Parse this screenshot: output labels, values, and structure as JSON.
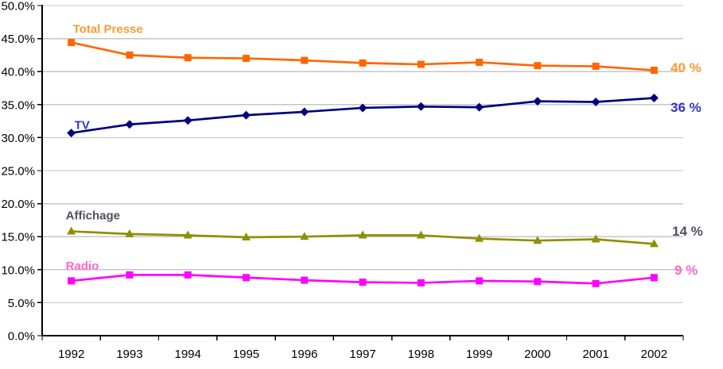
{
  "chart_data": {
    "type": "line",
    "title": "",
    "x_labels": [
      "1992",
      "1993",
      "1994",
      "1995",
      "1996",
      "1997",
      "1998",
      "1999",
      "2000",
      "2001",
      "2002"
    ],
    "y_axis": {
      "min": 0,
      "max": 50,
      "step": 5,
      "tick_labels": [
        "0.0%",
        "5.0%",
        "10.0%",
        "15.0%",
        "20.0%",
        "25.0%",
        "30.0%",
        "35.0%",
        "40.0%",
        "45.0%",
        "50.0%"
      ]
    },
    "grid": true,
    "legend_position": "inline-labels-near-first-point-and-end-values",
    "series": [
      {
        "name": "Total Presse",
        "marker": "square",
        "line_color": "#FF6600",
        "label_color": "#FF9933",
        "end_label": "40 %",
        "values": [
          44.4,
          42.5,
          42.1,
          42.0,
          41.7,
          41.3,
          41.1,
          41.4,
          40.9,
          40.8,
          40.2
        ]
      },
      {
        "name": "TV",
        "marker": "diamond",
        "line_color": "#000080",
        "label_color": "#3333CC",
        "end_label": "36 %",
        "values": [
          30.7,
          32.0,
          32.6,
          33.4,
          33.9,
          34.5,
          34.7,
          34.6,
          35.5,
          35.4,
          36.0
        ]
      },
      {
        "name": "Affichage",
        "marker": "triangle",
        "line_color": "#8F8F00",
        "label_color": "#50505F",
        "end_label": "14 %",
        "values": [
          15.8,
          15.4,
          15.2,
          14.9,
          15.0,
          15.2,
          15.2,
          14.7,
          14.4,
          14.6,
          13.9
        ]
      },
      {
        "name": "Radio",
        "marker": "square",
        "line_color": "#FF00FF",
        "label_color": "#FF66CC",
        "end_label": "9 %",
        "values": [
          8.3,
          9.2,
          9.2,
          8.8,
          8.4,
          8.1,
          8.0,
          8.3,
          8.2,
          7.9,
          8.8
        ]
      }
    ],
    "axis_color": "#000000",
    "grid_color": "#C6C6C6",
    "background": "#FFFFFF"
  }
}
